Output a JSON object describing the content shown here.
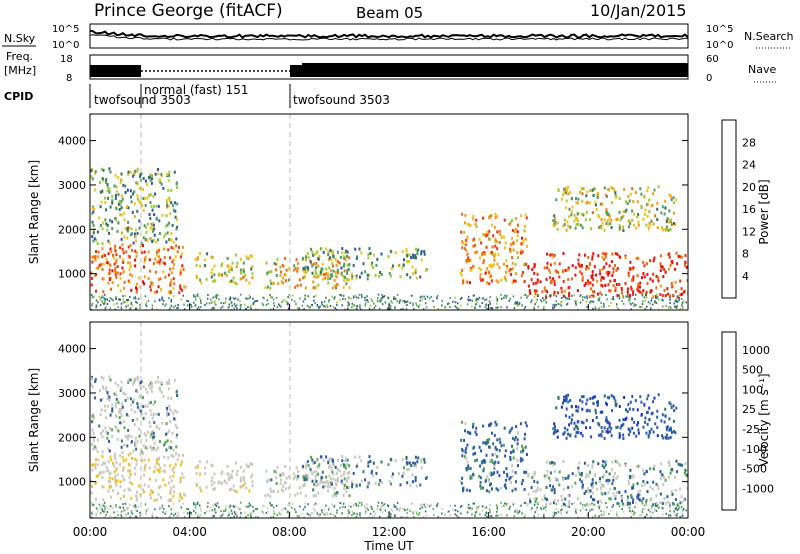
{
  "header": {
    "station": "Prince George (fitACF)",
    "beam": "Beam 05",
    "date": "10/Jan/2015"
  },
  "noise_panel": {
    "left_label": "N.Sky",
    "right_label": "N.Search",
    "left_ticks": [
      "10^5",
      "10^0"
    ],
    "right_ticks": [
      "10^5",
      "10^0"
    ]
  },
  "freq_panel": {
    "left_label_1": "Freq.",
    "left_label_2": "[MHz]",
    "right_label": "Nave",
    "left_ticks": [
      "18",
      "8"
    ],
    "right_ticks": [
      "60",
      "0"
    ]
  },
  "cpid_panel": {
    "label": "CPID",
    "modes": [
      {
        "name": "twofsound 3503",
        "start_hour": 0,
        "end_hour": 2
      },
      {
        "name": "normal (fast) 151",
        "start_hour": 2,
        "end_hour": 8
      },
      {
        "name": "twofsound 3503",
        "start_hour": 8,
        "end_hour": 24
      }
    ]
  },
  "axes": {
    "ylabel": "Slant Range [km]",
    "xlabel": "Time UT",
    "y_ticks": [
      "1000",
      "2000",
      "3000",
      "4000"
    ],
    "x_ticks": [
      "00:00",
      "04:00",
      "08:00",
      "12:00",
      "16:00",
      "20:00",
      "00:00"
    ]
  },
  "colorbars": {
    "power": {
      "label": "Power [dB]",
      "ticks": [
        "4",
        "8",
        "12",
        "16",
        "20",
        "24",
        "28"
      ],
      "colors": [
        "#1c1cf0",
        "#2a4fb8",
        "#2f6e60",
        "#4e9a6a",
        "#9ccc33",
        "#f2c21a",
        "#f59a18",
        "#f06a10",
        "#ee3010",
        "#e80c0c"
      ]
    },
    "velocity": {
      "label": "Velocity [m s⁻¹]",
      "ticks": [
        "1000",
        "500",
        "100",
        "25",
        "-25",
        "-100",
        "-500",
        "-1000"
      ],
      "colors": [
        "#1a2fd0",
        "#2a5aa8",
        "#2f7a6a",
        "#55a84a",
        "#c8c8c0",
        "#c8c8c0",
        "#f2c21a",
        "#f09020",
        "#ee5010",
        "#e81010"
      ]
    }
  },
  "chart_data": {
    "type": "heatmap",
    "title": "Prince George (fitACF)  Beam 05  10/Jan/2015",
    "xlabel": "Time UT",
    "ylabel": "Slant Range [km]",
    "xlim": [
      0,
      24
    ],
    "ylim": [
      180,
      4600
    ],
    "x_unit": "hours UT",
    "y_unit": "km",
    "scatter_regions": [
      {
        "t_start": 0.0,
        "t_end": 3.8,
        "r_min": 600,
        "r_max": 1700,
        "power_db": 24,
        "velocity": -400
      },
      {
        "t_start": 0.0,
        "t_end": 3.5,
        "r_min": 1700,
        "r_max": 3400,
        "power_db": 12,
        "velocity": -100
      },
      {
        "t_start": 4.2,
        "t_end": 6.5,
        "r_min": 800,
        "r_max": 1500,
        "power_db": 16,
        "velocity": -300
      },
      {
        "t_start": 7.0,
        "t_end": 10.5,
        "r_min": 700,
        "r_max": 1400,
        "power_db": 18,
        "velocity": -200
      },
      {
        "t_start": 8.5,
        "t_end": 13.5,
        "r_min": 900,
        "r_max": 1600,
        "power_db": 12,
        "velocity": 0
      },
      {
        "t_start": 14.8,
        "t_end": 17.5,
        "r_min": 800,
        "r_max": 2400,
        "power_db": 22,
        "velocity": 150
      },
      {
        "t_start": 17.5,
        "t_end": 24.0,
        "r_min": 500,
        "r_max": 1500,
        "power_db": 28,
        "velocity": 0
      },
      {
        "t_start": 18.5,
        "t_end": 23.5,
        "r_min": 2000,
        "r_max": 3000,
        "power_db": 16,
        "velocity": 300
      }
    ]
  }
}
